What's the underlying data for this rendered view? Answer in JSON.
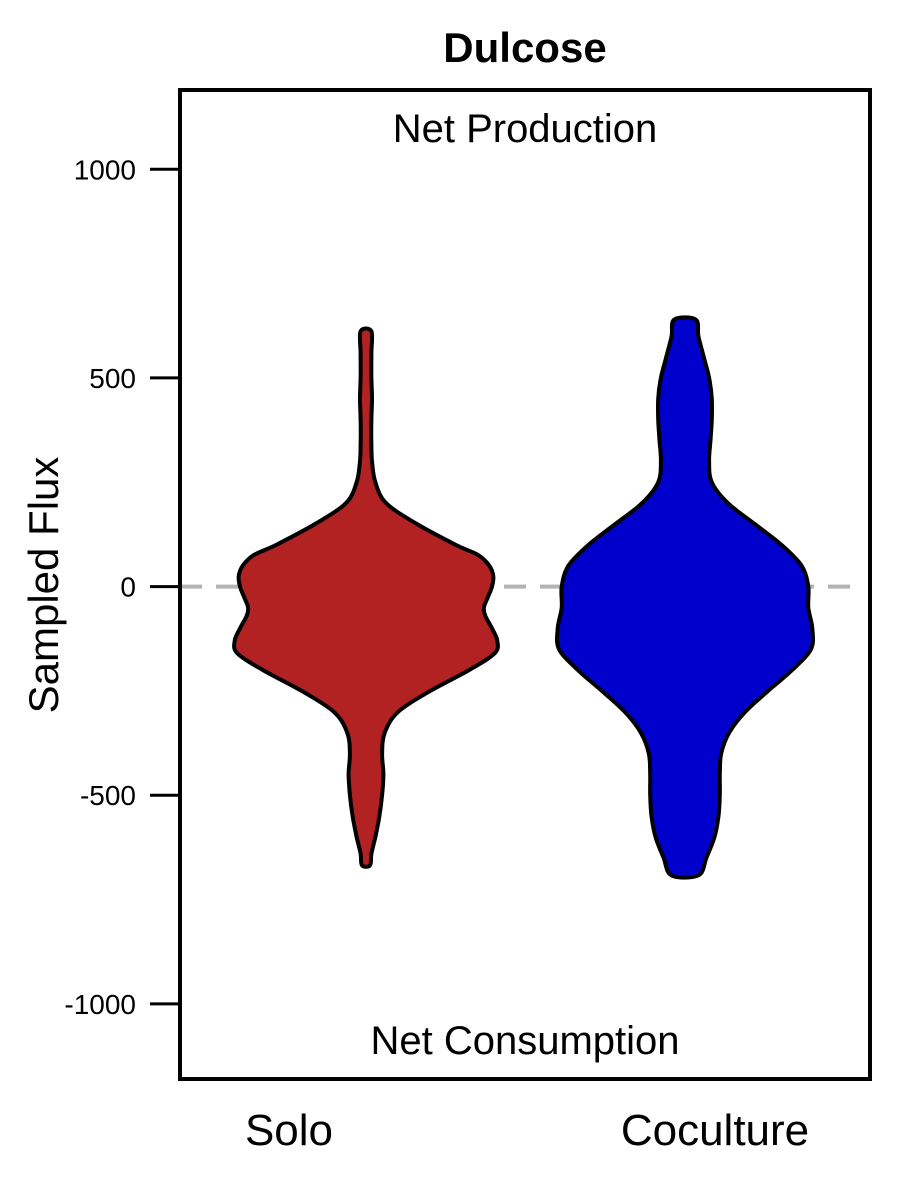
{
  "chart_data": {
    "type": "violin",
    "title": "Dulcose",
    "ylabel": "Sampled Flux",
    "xlabel": "",
    "ylim": [
      -1180,
      1190
    ],
    "yticks": [
      1000,
      500,
      0,
      -500,
      -1000
    ],
    "ytick_labels": [
      "1000",
      "500",
      "0",
      "-500",
      "-1000"
    ],
    "reference_line": {
      "y": 0,
      "style": "dashed",
      "color": "#b3b3b3"
    },
    "annotations": {
      "top": "Net Production",
      "bottom": "Net Consumption"
    },
    "grid": false,
    "legend": "none",
    "categories": [
      "Solo",
      "Coculture"
    ],
    "series": [
      {
        "category": "Solo",
        "color": "#b22222",
        "min": -668,
        "max": 612,
        "density_profile": [
          [
            612,
            0.04
          ],
          [
            560,
            0.04
          ],
          [
            500,
            0.04
          ],
          [
            450,
            0.045
          ],
          [
            400,
            0.04
          ],
          [
            340,
            0.04
          ],
          [
            300,
            0.045
          ],
          [
            250,
            0.07
          ],
          [
            200,
            0.15
          ],
          [
            150,
            0.38
          ],
          [
            100,
            0.67
          ],
          [
            75,
            0.84
          ],
          [
            50,
            0.92
          ],
          [
            25,
            0.95
          ],
          [
            0,
            0.94
          ],
          [
            -25,
            0.91
          ],
          [
            -50,
            0.88
          ],
          [
            -70,
            0.89
          ],
          [
            -100,
            0.94
          ],
          [
            -130,
            0.98
          ],
          [
            -160,
            0.96
          ],
          [
            -200,
            0.77
          ],
          [
            -250,
            0.48
          ],
          [
            -300,
            0.24
          ],
          [
            -350,
            0.14
          ],
          [
            -400,
            0.12
          ],
          [
            -450,
            0.13
          ],
          [
            -500,
            0.12
          ],
          [
            -550,
            0.1
          ],
          [
            -600,
            0.07
          ],
          [
            -640,
            0.04
          ],
          [
            -668,
            0.03
          ]
        ]
      },
      {
        "category": "Coculture",
        "color": "#0000cd",
        "min": -692,
        "max": 640,
        "density_profile": [
          [
            640,
            0.08
          ],
          [
            600,
            0.1
          ],
          [
            550,
            0.14
          ],
          [
            500,
            0.18
          ],
          [
            450,
            0.2
          ],
          [
            400,
            0.2
          ],
          [
            350,
            0.19
          ],
          [
            300,
            0.18
          ],
          [
            250,
            0.2
          ],
          [
            200,
            0.32
          ],
          [
            150,
            0.52
          ],
          [
            100,
            0.72
          ],
          [
            50,
            0.87
          ],
          [
            0,
            0.92
          ],
          [
            -50,
            0.92
          ],
          [
            -100,
            0.95
          ],
          [
            -150,
            0.94
          ],
          [
            -200,
            0.8
          ],
          [
            -250,
            0.62
          ],
          [
            -300,
            0.45
          ],
          [
            -350,
            0.33
          ],
          [
            -400,
            0.27
          ],
          [
            -450,
            0.26
          ],
          [
            -500,
            0.26
          ],
          [
            -550,
            0.25
          ],
          [
            -600,
            0.22
          ],
          [
            -650,
            0.16
          ],
          [
            -692,
            0.1
          ]
        ]
      }
    ]
  }
}
